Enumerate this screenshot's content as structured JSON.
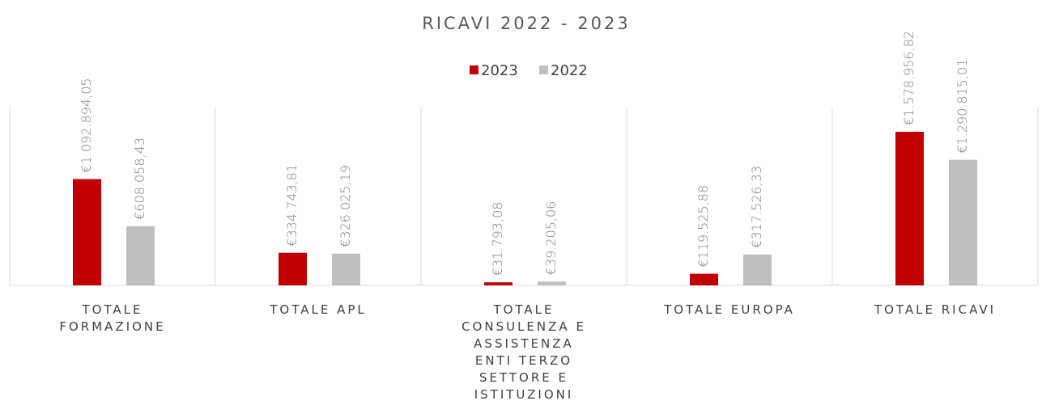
{
  "chart_data": {
    "type": "bar",
    "title": "RICAVI 2022 - 2023",
    "categories": [
      "TOTALE FORMAZIONE",
      "TOTALE APL",
      "TOTALE CONSULENZA E ASSISTENZA ENTI TERZO SETTORE E ISTITUZIONI",
      "TOTALE EUROPA",
      "TOTALE RICAVI"
    ],
    "series": [
      {
        "name": "2023",
        "color": "#c00000",
        "values": [
          1092894.05,
          334743.81,
          31793.08,
          119525.88,
          1578956.82
        ],
        "value_labels": [
          "€1.092.894,05",
          "€334.743,81",
          "€31.793,08",
          "€119.525,88",
          "€1.578.956,82"
        ]
      },
      {
        "name": "2022",
        "color": "#bfbfbf",
        "values": [
          608058.43,
          326025.19,
          39205.06,
          317526.33,
          1290815.01
        ],
        "value_labels": [
          "€608.058,43",
          "€326.025,19",
          "€39.205,06",
          "€317.526,33",
          "€1.290.815,01"
        ]
      }
    ],
    "legend": "top"
  }
}
